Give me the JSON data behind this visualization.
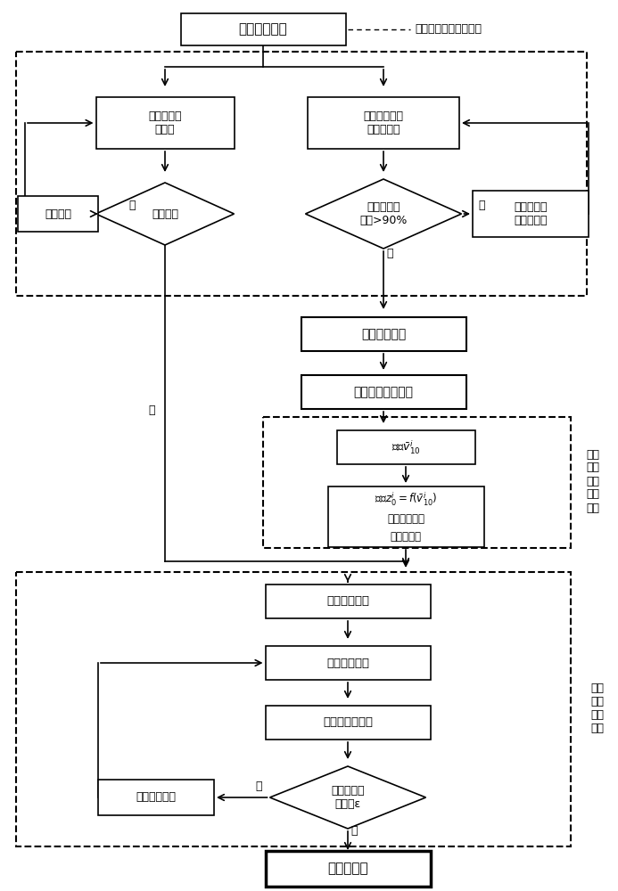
{
  "bg": "#ffffff",
  "top_note": "包括测风数据和地形图",
  "collect_text": "收集基本资料",
  "verify_map_text": "验证地形图\n准确性",
  "verify_wind_text": "验证测风数据\n有效完整性",
  "chk_map_text": "是否准确",
  "chk_wind_text": "有效完整率\n是否>90%",
  "recollect_text": "重新收集",
  "fill_data_text": "插补修正缺\n测无效数据",
  "analyze_text": "分析测风数据",
  "make_file_text": "制作测风资料文件",
  "calc_v_text": "计算$\\bar{v}_{10}^i$",
  "calc_z_line1": "根据$z_0^i = f(\\bar{v}_{10}^i)$",
  "calc_z_line2": "计算各局部区",
  "calc_z_line3": "域粗糙度值",
  "draw_rough_text": "初绘粗糙度线",
  "assign_rough_text": "粗糙度线赋值",
  "simulate_text": "风资源模拟计算",
  "chk_err_text": "检验误差是\n否小于ε",
  "adjust_text": "调整粗糙度线",
  "final_text": "风资源评估",
  "side1_text": "计算\n局部\n区域\n粗糙\n度值",
  "side2_text": "制作\n地形\n地貌\n文件",
  "yes": "是",
  "no": "否"
}
